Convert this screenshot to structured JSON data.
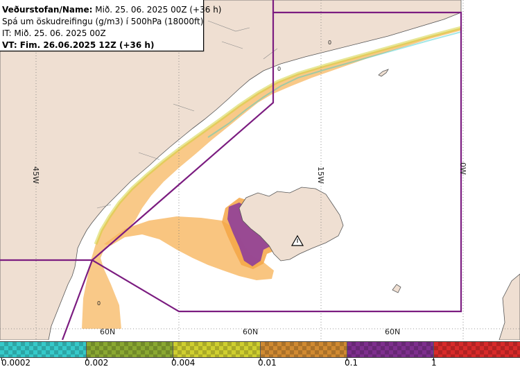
{
  "info": {
    "name_label": "Veðurstofan/Name:",
    "name_value": "Mið. 25. 06. 2025 00Z (+36 h)",
    "product": "Spá um öskudreifingu (g/m3) í 500hPa (18000ft)",
    "issue_time": "IT: Mið. 25. 06. 2025 00Z",
    "valid_time": "VT: Fim. 26.06.2025 12Z (+36 h)"
  },
  "grid_labels": {
    "lon": [
      "45W",
      "15W",
      "0W"
    ],
    "lat": [
      "60N",
      "60N",
      "60N"
    ]
  },
  "contour_labels": [
    "0",
    "0",
    "0"
  ],
  "legend": {
    "labels": [
      "0.0002",
      "0.002",
      "0.004",
      "0.01",
      "0.1",
      "1"
    ],
    "colors": [
      "#36c9c9",
      "#8aa832",
      "#cfcf30",
      "#d08a32",
      "#7e2f8e",
      "#d82a2a"
    ]
  },
  "colors": {
    "land": "#efdfd2",
    "sea": "#ffffff",
    "boundary": "#7b1c80",
    "ash_low": "#f7b760",
    "ash_mid": "#f5a646",
    "ash_high": "#8f3e99",
    "ash_top": "#e04b4b"
  },
  "volcano_icon": "volcano-warning-icon"
}
